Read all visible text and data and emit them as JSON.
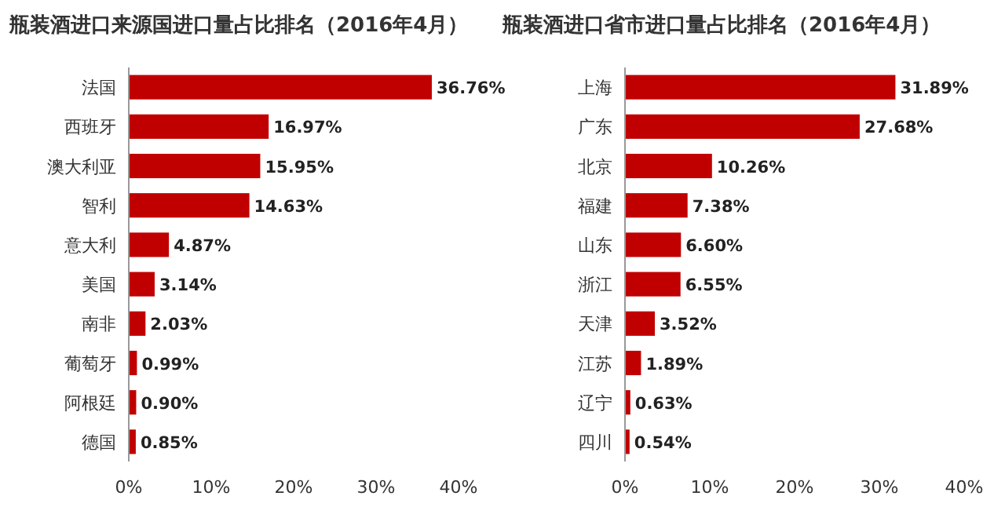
{
  "chart_data": [
    {
      "type": "bar",
      "orientation": "horizontal",
      "title": "瓶装酒进口来源国进口量占比排名（2016年4月）",
      "categories": [
        "法国",
        "西班牙",
        "澳大利亚",
        "智利",
        "意大利",
        "美国",
        "南非",
        "葡萄牙",
        "阿根廷",
        "德国"
      ],
      "values": [
        36.76,
        16.97,
        15.95,
        14.63,
        4.87,
        3.14,
        2.03,
        0.99,
        0.9,
        0.85
      ],
      "value_labels": [
        "36.76%",
        "16.97%",
        "15.95%",
        "14.63%",
        "4.87%",
        "3.14%",
        "2.03%",
        "0.99%",
        "0.90%",
        "0.85%"
      ],
      "color": "#c00000",
      "xlim": [
        0,
        40
      ],
      "xticks": [
        {
          "value": 0,
          "label": "0%"
        },
        {
          "value": 10,
          "label": "10%"
        },
        {
          "value": 20,
          "label": "20%"
        },
        {
          "value": 30,
          "label": "30%"
        },
        {
          "value": 40,
          "label": "40%"
        }
      ]
    },
    {
      "type": "bar",
      "orientation": "horizontal",
      "title": "瓶装酒进口省市进口量占比排名（2016年4月）",
      "categories": [
        "上海",
        "广东",
        "北京",
        "福建",
        "山东",
        "浙江",
        "天津",
        "江苏",
        "辽宁",
        "四川"
      ],
      "values": [
        31.89,
        27.68,
        10.26,
        7.38,
        6.6,
        6.55,
        3.52,
        1.89,
        0.63,
        0.54
      ],
      "value_labels": [
        "31.89%",
        "27.68%",
        "10.26%",
        "7.38%",
        "6.60%",
        "6.55%",
        "3.52%",
        "1.89%",
        "0.63%",
        "0.54%"
      ],
      "color": "#c00000",
      "xlim": [
        0,
        40
      ],
      "xticks": [
        {
          "value": 0,
          "label": "0%"
        },
        {
          "value": 10,
          "label": "10%"
        },
        {
          "value": 20,
          "label": "20%"
        },
        {
          "value": 30,
          "label": "30%"
        },
        {
          "value": 40,
          "label": "40%"
        }
      ]
    }
  ]
}
